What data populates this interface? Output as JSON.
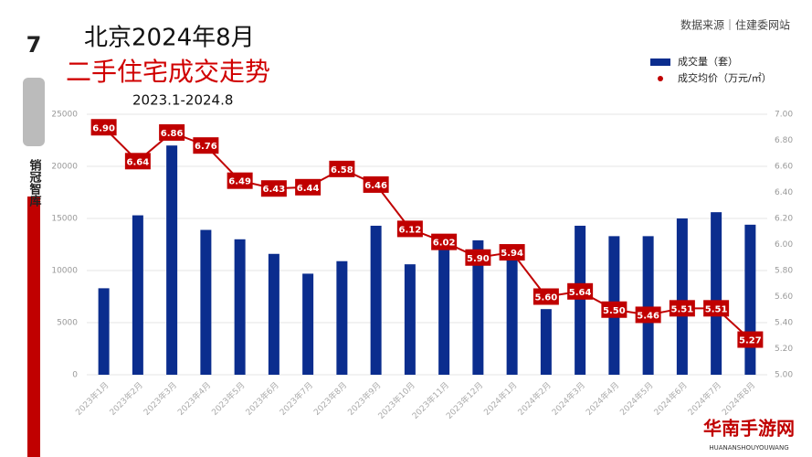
{
  "page_number": "7",
  "brand": "销冠智库",
  "logo": {
    "name": "华南手游网",
    "subtitle": "HUANANSHOUYOUWANG"
  },
  "chart_data": {
    "type": "bar_line",
    "title": "北京2024年8月",
    "subtitle": "二手住宅成交走势",
    "period": "2023.1-2024.8",
    "source": "数据来源｜住建委网站",
    "categories": [
      "2023年1月",
      "2023年2月",
      "2023年3月",
      "2023年4月",
      "2023年5月",
      "2023年6月",
      "2023年7月",
      "2023年8月",
      "2023年9月",
      "2023年10月",
      "2023年11月",
      "2023年12月",
      "2024年1月",
      "2024年2月",
      "2024年3月",
      "2024年4月",
      "2024年5月",
      "2024年6月",
      "2024年7月",
      "2024年8月"
    ],
    "series": [
      {
        "name": "成交量（套）",
        "type": "bar",
        "color": "#0b2d8e",
        "values": [
          8300,
          15300,
          22000,
          13900,
          13000,
          11600,
          9700,
          10900,
          14300,
          10600,
          12300,
          12900,
          11200,
          6300,
          14300,
          13300,
          13300,
          15000,
          15600,
          14400
        ]
      },
      {
        "name": "成交均价（万元/㎡）",
        "type": "line",
        "axis": "y2",
        "color": "#c00000",
        "values": [
          6.9,
          6.64,
          6.86,
          6.76,
          6.49,
          6.43,
          6.44,
          6.58,
          6.46,
          6.12,
          6.02,
          5.9,
          5.94,
          5.6,
          5.64,
          5.5,
          5.46,
          5.51,
          5.51,
          5.27
        ],
        "value_labels": [
          "6.90",
          "6.64",
          "6.86",
          "6.76",
          "6.49",
          "6.43",
          "6.44",
          "6.58",
          "6.46",
          "6.12",
          "6.02",
          "5.90",
          "5.94",
          "5.60",
          "5.64",
          "5.50",
          "5.46",
          "5.51",
          "5.51",
          "5.27"
        ]
      }
    ],
    "ylim": [
      0,
      25000
    ],
    "yticks": [
      0,
      5000,
      10000,
      15000,
      20000,
      25000
    ],
    "y2lim": [
      5,
      7
    ],
    "y2ticks": [
      {
        "value": 5,
        "label": "5.00"
      },
      {
        "value": 5.2,
        "label": "5.20"
      },
      {
        "value": 5.4,
        "label": "5.40"
      },
      {
        "value": 5.6,
        "label": "5.60"
      },
      {
        "value": 5.8,
        "label": "5.80"
      },
      {
        "value": 6,
        "label": "6.00"
      },
      {
        "value": 6.2,
        "label": "6.20"
      },
      {
        "value": 6.4,
        "label": "6.40"
      },
      {
        "value": 6.6,
        "label": "6.60"
      },
      {
        "value": 6.8,
        "label": "6.80"
      },
      {
        "value": 7,
        "label": "7.00"
      }
    ],
    "grid": true
  }
}
